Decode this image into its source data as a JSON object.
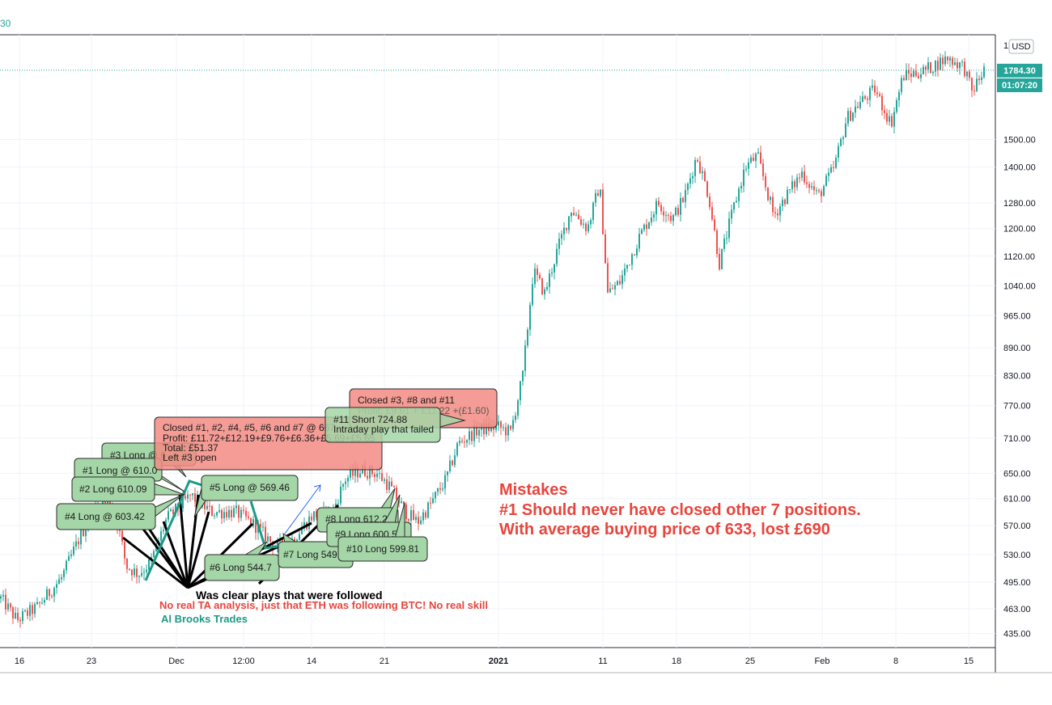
{
  "header": {
    "price_fragment": "30"
  },
  "price_scale": {
    "currency": "USD",
    "top_clipped_label": "1",
    "last_price_label": "1784.30",
    "countdown_label": "01:07:20",
    "tick_labels": [
      "1500.00",
      "1400.00",
      "1280.00",
      "1200.00",
      "1120.00",
      "1040.00",
      "965.00",
      "890.00",
      "830.00",
      "770.00",
      "710.00",
      "650.00",
      "610.00",
      "570.00",
      "530.00",
      "495.00",
      "463.00",
      "435.00"
    ]
  },
  "time_axis": {
    "labels": [
      {
        "text": "16",
        "bold": false
      },
      {
        "text": "23",
        "bold": false
      },
      {
        "text": "Dec",
        "bold": false
      },
      {
        "text": "12:00",
        "bold": false
      },
      {
        "text": "14",
        "bold": false
      },
      {
        "text": "21",
        "bold": false
      },
      {
        "text": "2021",
        "bold": true
      },
      {
        "text": "11",
        "bold": false
      },
      {
        "text": "18",
        "bold": false
      },
      {
        "text": "25",
        "bold": false
      },
      {
        "text": "Feb",
        "bold": false
      },
      {
        "text": "8",
        "bold": false
      },
      {
        "text": "15",
        "bold": false
      }
    ]
  },
  "chart_data": {
    "type": "candlestick",
    "y_scale": "log",
    "ylim": [
      420,
      1950
    ],
    "last_price": 1784.3,
    "colors": {
      "up": "#26a69a",
      "down": "#ef5350",
      "last_price": "#26a69a",
      "note_red": "#e8453c",
      "note_green": "#1c9a87"
    },
    "price_path": [
      {
        "t": 0,
        "p": 475
      },
      {
        "t": 20,
        "p": 450
      },
      {
        "t": 45,
        "p": 465
      },
      {
        "t": 75,
        "p": 500
      },
      {
        "t": 100,
        "p": 560
      },
      {
        "t": 125,
        "p": 605
      },
      {
        "t": 140,
        "p": 600
      },
      {
        "t": 155,
        "p": 515
      },
      {
        "t": 170,
        "p": 505
      },
      {
        "t": 185,
        "p": 520
      },
      {
        "t": 205,
        "p": 580
      },
      {
        "t": 235,
        "p": 615
      },
      {
        "t": 260,
        "p": 590
      },
      {
        "t": 290,
        "p": 590
      },
      {
        "t": 315,
        "p": 570
      },
      {
        "t": 340,
        "p": 540
      },
      {
        "t": 360,
        "p": 550
      },
      {
        "t": 385,
        "p": 585
      },
      {
        "t": 410,
        "p": 590
      },
      {
        "t": 425,
        "p": 640
      },
      {
        "t": 445,
        "p": 655
      },
      {
        "t": 465,
        "p": 650
      },
      {
        "t": 480,
        "p": 630
      },
      {
        "t": 500,
        "p": 590
      },
      {
        "t": 515,
        "p": 575
      },
      {
        "t": 530,
        "p": 600
      },
      {
        "t": 550,
        "p": 640
      },
      {
        "t": 565,
        "p": 700
      },
      {
        "t": 590,
        "p": 725
      },
      {
        "t": 615,
        "p": 730
      },
      {
        "t": 630,
        "p": 720
      },
      {
        "t": 645,
        "p": 830
      },
      {
        "t": 658,
        "p": 1080
      },
      {
        "t": 672,
        "p": 1020
      },
      {
        "t": 688,
        "p": 1140
      },
      {
        "t": 705,
        "p": 1260
      },
      {
        "t": 725,
        "p": 1200
      },
      {
        "t": 740,
        "p": 1340
      },
      {
        "t": 750,
        "p": 1020
      },
      {
        "t": 765,
        "p": 1050
      },
      {
        "t": 790,
        "p": 1180
      },
      {
        "t": 812,
        "p": 1280
      },
      {
        "t": 830,
        "p": 1230
      },
      {
        "t": 845,
        "p": 1300
      },
      {
        "t": 860,
        "p": 1440
      },
      {
        "t": 875,
        "p": 1300
      },
      {
        "t": 888,
        "p": 1100
      },
      {
        "t": 905,
        "p": 1260
      },
      {
        "t": 920,
        "p": 1400
      },
      {
        "t": 935,
        "p": 1440
      },
      {
        "t": 955,
        "p": 1240
      },
      {
        "t": 970,
        "p": 1300
      },
      {
        "t": 990,
        "p": 1380
      },
      {
        "t": 1010,
        "p": 1300
      },
      {
        "t": 1030,
        "p": 1400
      },
      {
        "t": 1045,
        "p": 1580
      },
      {
        "t": 1060,
        "p": 1640
      },
      {
        "t": 1080,
        "p": 1700
      },
      {
        "t": 1100,
        "p": 1560
      },
      {
        "t": 1115,
        "p": 1760
      },
      {
        "t": 1140,
        "p": 1780
      },
      {
        "t": 1170,
        "p": 1840
      },
      {
        "t": 1190,
        "p": 1800
      },
      {
        "t": 1200,
        "p": 1690
      },
      {
        "t": 1215,
        "p": 1784.3
      }
    ],
    "trade_labels": [
      {
        "text": "#3 Long @ 6"
      },
      {
        "text": "#1 Long @ 610.0"
      },
      {
        "text": "#2 Long 610.09"
      },
      {
        "text": "#4 Long @ 603.42"
      },
      {
        "text": "#5 Long @ 569.46"
      },
      {
        "text": "#6 Long 544.7"
      },
      {
        "text": "#7 Long 549.79"
      },
      {
        "text": "#8 Long 612.29"
      },
      {
        "text": "#9 Long 600.56"
      },
      {
        "text": "#10 Long 599.81"
      }
    ],
    "callout_closed_1": {
      "lines": [
        "Closed #1, #2, #4, #5, #6 and #7 @ 667",
        "Profit: £11.72+£12.19+£9.76+£6.36+£5.69+£5.65",
        "Total: £51.37",
        "Left #3 open"
      ]
    },
    "callout_short": {
      "lines": [
        "#11 Short 724.88",
        "Intraday play that failed"
      ]
    },
    "callout_closed_2": {
      "lines": [
        "Closed #3, #8 and #11",
        "Profit: £9.61 + £11.22 +(£1.60)"
      ]
    },
    "annotations": {
      "clear_plays": "Was clear plays that were followed",
      "no_ta": "No real TA analysis, just that ETH was following BTC!  No real skill",
      "source": "Al Brooks Trades",
      "mistakes": [
        "Mistakes",
        "#1 Should never have closed other 7 positions.",
        "With average buying price of 633, lost £690"
      ]
    }
  }
}
